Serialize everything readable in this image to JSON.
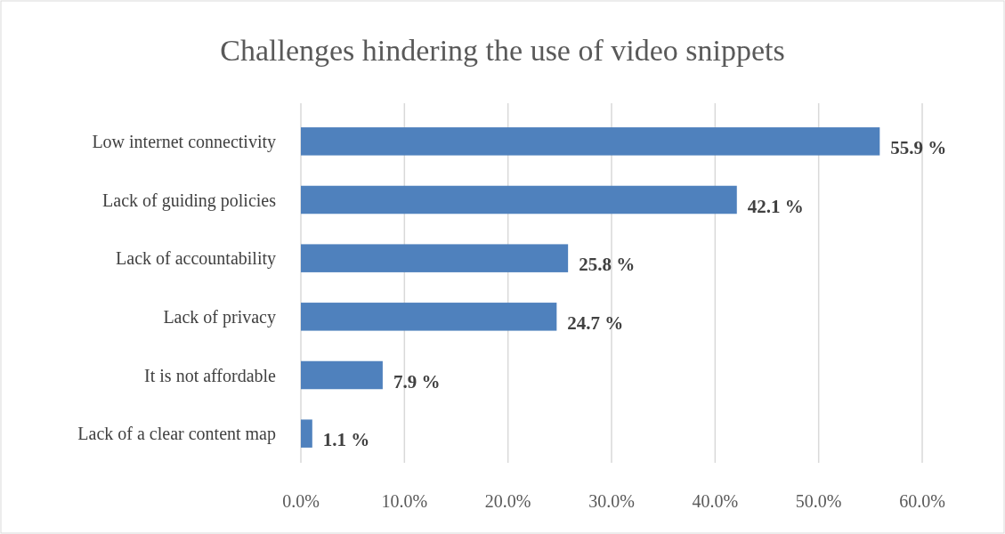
{
  "chart_data": {
    "type": "bar",
    "orientation": "horizontal",
    "title": "Challenges hindering the use of video snippets",
    "categories": [
      "Low internet connectivity",
      "Lack of guiding policies",
      "Lack of accountability",
      "Lack of privacy",
      "It is not affordable",
      "Lack of a clear content map"
    ],
    "values": [
      55.9,
      42.1,
      25.8,
      24.7,
      7.9,
      1.1
    ],
    "value_labels": [
      "55.9 %",
      "42.1 %",
      "25.8 %",
      "24.7 %",
      "7.9 %",
      "1.1 %"
    ],
    "color": "#4f81bd",
    "xlim": [
      0,
      60
    ],
    "xticks": [
      {
        "value": 0,
        "label": "0.0%"
      },
      {
        "value": 10,
        "label": "10.0%"
      },
      {
        "value": 20,
        "label": "20.0%"
      },
      {
        "value": 30,
        "label": "30.0%"
      },
      {
        "value": 40,
        "label": "40.0%"
      },
      {
        "value": 50,
        "label": "50.0%"
      },
      {
        "value": 60,
        "label": "60.0%"
      }
    ],
    "grid": "x"
  }
}
